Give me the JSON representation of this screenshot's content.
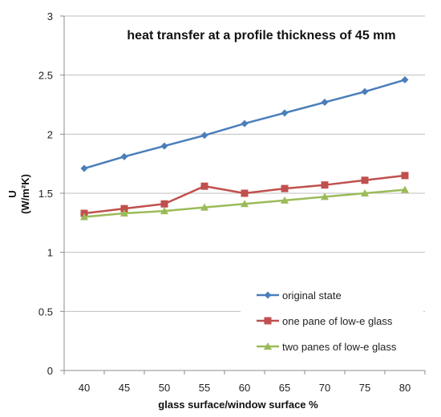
{
  "chart_data": {
    "type": "line",
    "title": "heat transfer at a profile thickness of 45 mm",
    "xlabel": "glass surface/window surface %",
    "ylabel_line1": "U",
    "ylabel_line2": "(W/m²K)",
    "x": [
      40,
      45,
      50,
      55,
      60,
      65,
      70,
      75,
      80
    ],
    "xticks": [
      "40",
      "45",
      "50",
      "55",
      "60",
      "65",
      "70",
      "75",
      "80"
    ],
    "ylim": [
      0,
      3
    ],
    "yticks": [
      "0",
      "0.5",
      "1",
      "1.5",
      "2",
      "2.5",
      "3"
    ],
    "ytick_values": [
      0,
      0.5,
      1,
      1.5,
      2,
      2.5,
      3
    ],
    "grid": true,
    "legend_position": "bottom-right",
    "series": [
      {
        "name": "original state",
        "color": "#4a7ebb",
        "marker": "diamond",
        "values": [
          1.71,
          1.81,
          1.9,
          1.99,
          2.09,
          2.18,
          2.27,
          2.36,
          2.46
        ]
      },
      {
        "name": "one pane of low-e glass",
        "color": "#c0504d",
        "marker": "square",
        "values": [
          1.33,
          1.37,
          1.41,
          1.56,
          1.5,
          1.54,
          1.57,
          1.61,
          1.65
        ]
      },
      {
        "name": "two panes of low-e glass",
        "color": "#9bbb59",
        "marker": "triangle",
        "values": [
          1.3,
          1.33,
          1.35,
          1.38,
          1.41,
          1.44,
          1.47,
          1.5,
          1.53
        ]
      }
    ]
  }
}
